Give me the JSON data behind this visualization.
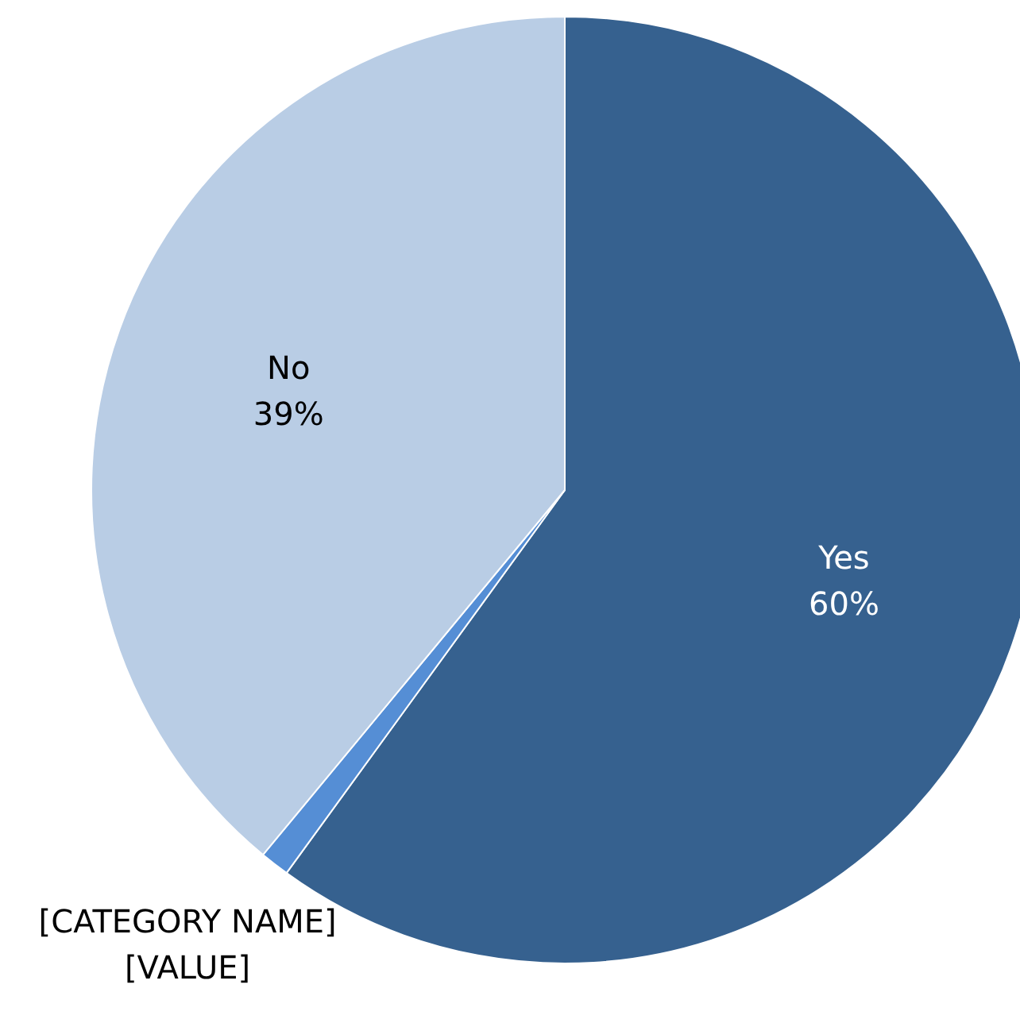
{
  "chart_data": {
    "type": "pie",
    "categories": [
      "Yes",
      "No",
      "[CATEGORY NAME]"
    ],
    "values": [
      60,
      39,
      1
    ],
    "colors": [
      "#36618f",
      "#b9cde5",
      "#558ed5"
    ],
    "value_labels": [
      "60%",
      "39%",
      "[VALUE]"
    ]
  }
}
